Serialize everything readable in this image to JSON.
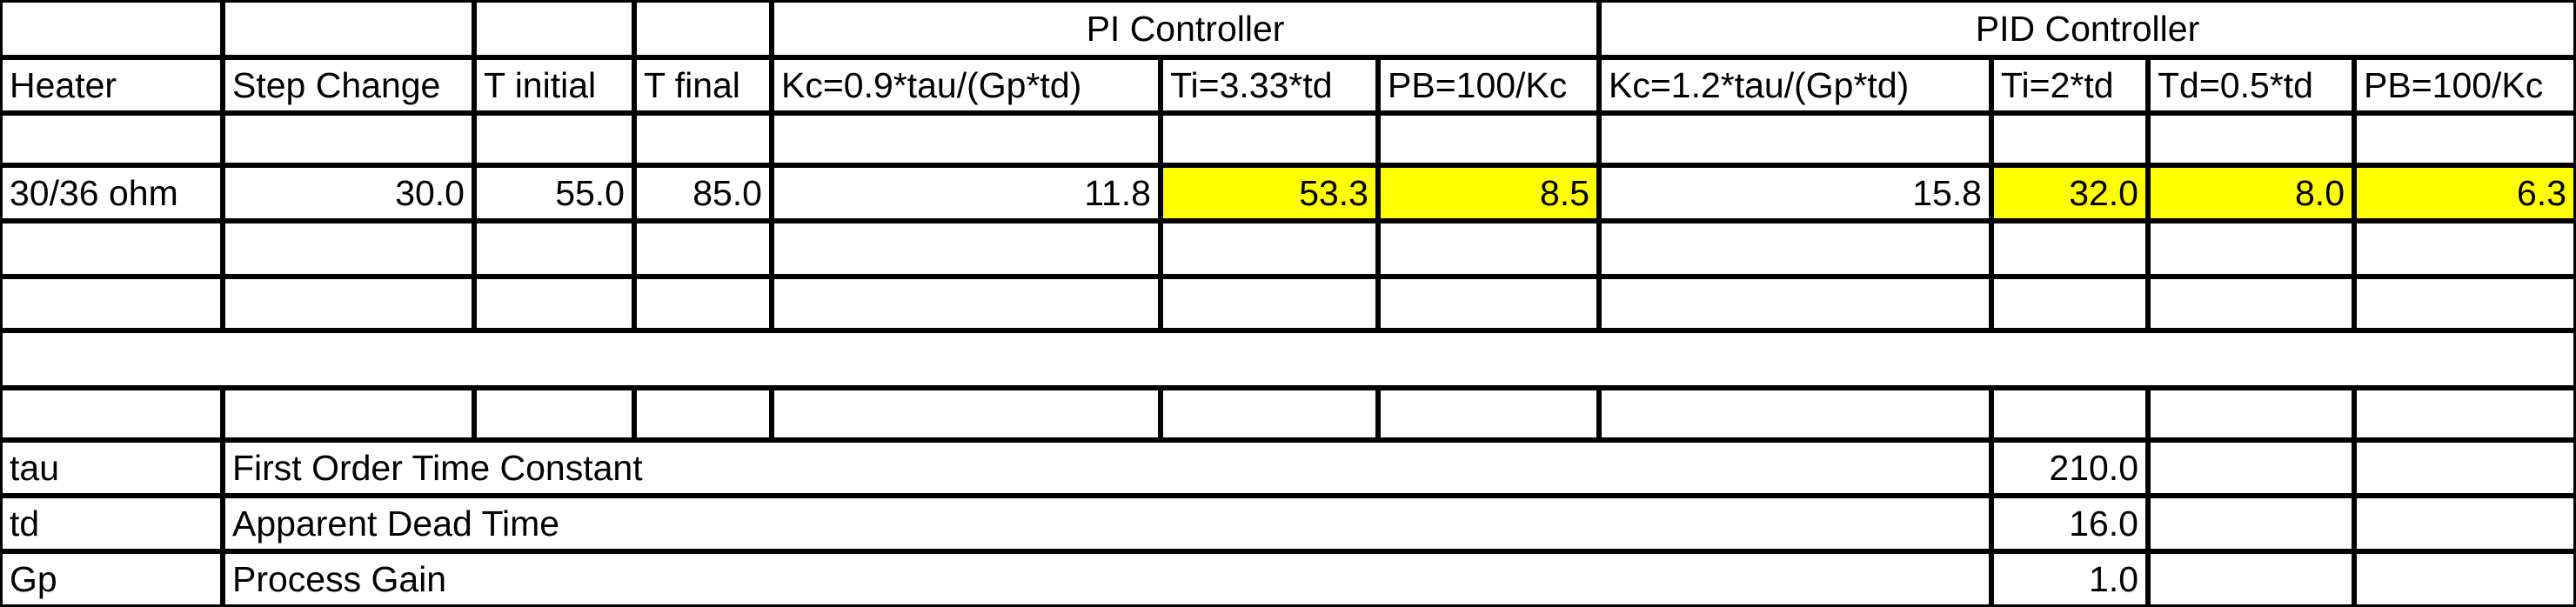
{
  "header": {
    "pi_controller": "PI Controller",
    "pid_controller": "PID Controller"
  },
  "columns": {
    "heater": "Heater",
    "step_change": "Step Change",
    "t_initial": "T initial",
    "t_final": "T final",
    "pi_kc": "Kc=0.9*tau/(Gp*td)",
    "pi_ti": "Ti=3.33*td",
    "pi_pb": "PB=100/Kc",
    "pid_kc": "Kc=1.2*tau/(Gp*td)",
    "pid_ti": "Ti=2*td",
    "pid_td": "Td=0.5*td",
    "pid_pb": "PB=100/Kc"
  },
  "data_row": {
    "heater": "30/36 ohm",
    "step_change": "30.0",
    "t_initial": "55.0",
    "t_final": "85.0",
    "pi_kc": "11.8",
    "pi_ti": "53.3",
    "pi_pb": "8.5",
    "pid_kc": "15.8",
    "pid_ti": "32.0",
    "pid_td": "8.0",
    "pid_pb": "6.3"
  },
  "parameters": [
    {
      "symbol": "tau",
      "description": "First Order Time Constant",
      "value": "210.0"
    },
    {
      "symbol": "td",
      "description": "Apparent Dead Time",
      "value": "16.0"
    },
    {
      "symbol": "Gp",
      "description": "Process Gain",
      "value": "1.0"
    }
  ],
  "colors": {
    "highlight": "#ffff00",
    "grid": "#000000",
    "background": "#ffffff"
  }
}
